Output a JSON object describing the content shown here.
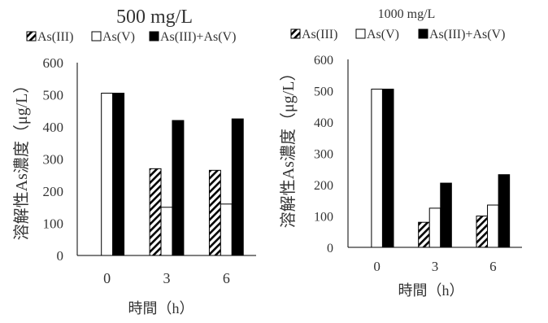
{
  "colors": {
    "as3": "hatched",
    "as5": "#ffffff",
    "total": "#000000",
    "text": "#333333",
    "axis": "#000000"
  },
  "chart_data": [
    {
      "type": "bar",
      "title": "500 mg/L",
      "categories": [
        "0",
        "3",
        "6"
      ],
      "series": [
        {
          "name": "As(III)",
          "values": [
            null,
            270,
            265
          ]
        },
        {
          "name": "As(V)",
          "values": [
            505,
            150,
            160
          ]
        },
        {
          "name": "As(III)+As(V)",
          "values": [
            505,
            420,
            425
          ]
        }
      ],
      "xlabel": "時間（h）",
      "ylabel": "溶解性As濃度（μg/L）",
      "ylim": [
        0,
        600
      ],
      "yticks": [
        "0",
        "100",
        "200",
        "300",
        "400",
        "500",
        "600"
      ],
      "legend": "top",
      "grid": false
    },
    {
      "type": "bar",
      "title": "1000 mg/L",
      "categories": [
        "0",
        "3",
        "6"
      ],
      "series": [
        {
          "name": "As(III)",
          "values": [
            null,
            80,
            100
          ]
        },
        {
          "name": "As(V)",
          "values": [
            505,
            125,
            135
          ]
        },
        {
          "name": "As(III)+As(V)",
          "values": [
            505,
            205,
            232
          ]
        }
      ],
      "xlabel": "時間（h）",
      "ylabel": "溶解性As濃度（μg/L）",
      "ylim": [
        0,
        600
      ],
      "yticks": [
        "0",
        "100",
        "200",
        "300",
        "400",
        "500",
        "600"
      ],
      "legend": "top",
      "grid": false
    }
  ]
}
